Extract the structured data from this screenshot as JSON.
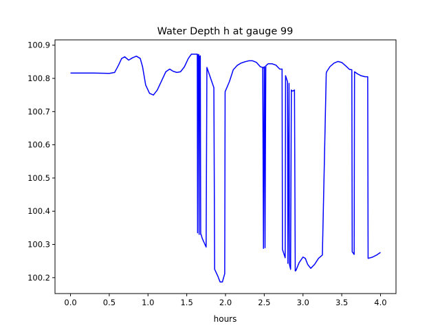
{
  "chart_data": {
    "type": "line",
    "title": "Water Depth h at gauge 99",
    "xlabel": "hours",
    "ylabel": "",
    "xlim": [
      -0.2,
      4.2
    ],
    "ylim": [
      100.152,
      100.916
    ],
    "xticks": [
      0.0,
      0.5,
      1.0,
      1.5,
      2.0,
      2.5,
      3.0,
      3.5,
      4.0
    ],
    "xtick_labels": [
      "0.0",
      "0.5",
      "1.0",
      "1.5",
      "2.0",
      "2.5",
      "3.0",
      "3.5",
      "4.0"
    ],
    "yticks": [
      100.2,
      100.3,
      100.4,
      100.5,
      100.6,
      100.7,
      100.8,
      100.9
    ],
    "ytick_labels": [
      "100.2",
      "100.3",
      "100.4",
      "100.5",
      "100.6",
      "100.7",
      "100.8",
      "100.9"
    ],
    "grid": false,
    "line_color": "#0000ff",
    "series": [
      {
        "x": [
          0.0,
          0.3,
          0.5,
          0.57,
          0.62,
          0.66,
          0.7,
          0.75,
          0.8,
          0.85,
          0.9,
          0.93,
          0.97,
          1.02,
          1.07,
          1.12,
          1.18,
          1.23,
          1.28,
          1.32,
          1.37,
          1.42,
          1.47,
          1.52,
          1.56,
          1.59,
          1.62,
          1.636,
          1.64,
          1.645,
          1.655,
          1.66,
          1.665,
          1.675,
          1.68,
          1.685,
          1.7,
          1.75,
          1.76,
          1.85,
          1.86,
          1.9,
          1.93,
          1.96,
          1.99,
          1.995,
          2.05,
          2.1,
          2.15,
          2.2,
          2.25,
          2.3,
          2.35,
          2.4,
          2.45,
          2.5,
          2.48,
          2.49,
          2.5,
          2.505,
          2.51,
          2.52,
          2.55,
          2.6,
          2.65,
          2.7,
          2.73,
          2.735,
          2.77,
          2.775,
          2.8,
          2.805,
          2.82,
          2.825,
          2.84,
          2.85,
          2.86,
          2.87,
          2.89,
          2.9,
          2.91,
          2.95,
          3.0,
          3.03,
          3.06,
          3.1,
          3.15,
          3.2,
          3.25,
          3.3,
          3.305,
          3.35,
          3.4,
          3.45,
          3.5,
          3.55,
          3.6,
          3.63,
          3.635,
          3.66,
          3.665,
          3.7,
          3.75,
          3.8,
          3.835,
          3.84,
          3.9,
          3.95,
          4.0
        ],
        "y": [
          100.816,
          100.816,
          100.815,
          100.818,
          100.84,
          100.86,
          100.865,
          100.855,
          100.862,
          100.867,
          100.86,
          100.835,
          100.78,
          100.755,
          100.75,
          100.765,
          100.795,
          100.82,
          100.828,
          100.822,
          100.818,
          100.82,
          100.835,
          100.86,
          100.873,
          100.873,
          100.873,
          100.873,
          100.335,
          100.87,
          100.872,
          100.33,
          100.866,
          100.868,
          100.33,
          100.33,
          100.318,
          100.292,
          100.833,
          100.772,
          100.225,
          100.205,
          100.187,
          100.187,
          100.212,
          100.76,
          100.79,
          100.826,
          100.839,
          100.846,
          100.85,
          100.853,
          100.853,
          100.848,
          100.835,
          100.832,
          100.832,
          100.288,
          100.835,
          100.835,
          100.29,
          100.838,
          100.844,
          100.844,
          100.84,
          100.828,
          100.828,
          100.285,
          100.26,
          100.808,
          100.79,
          100.243,
          100.785,
          100.24,
          100.225,
          100.765,
          100.762,
          100.762,
          100.765,
          100.22,
          100.222,
          100.245,
          100.262,
          100.258,
          100.24,
          100.228,
          100.24,
          100.258,
          100.268,
          100.815,
          100.82,
          100.836,
          100.846,
          100.851,
          100.848,
          100.838,
          100.827,
          100.826,
          100.278,
          100.27,
          100.82,
          100.814,
          100.808,
          100.805,
          100.805,
          100.258,
          100.262,
          100.268,
          100.276
        ]
      }
    ]
  }
}
